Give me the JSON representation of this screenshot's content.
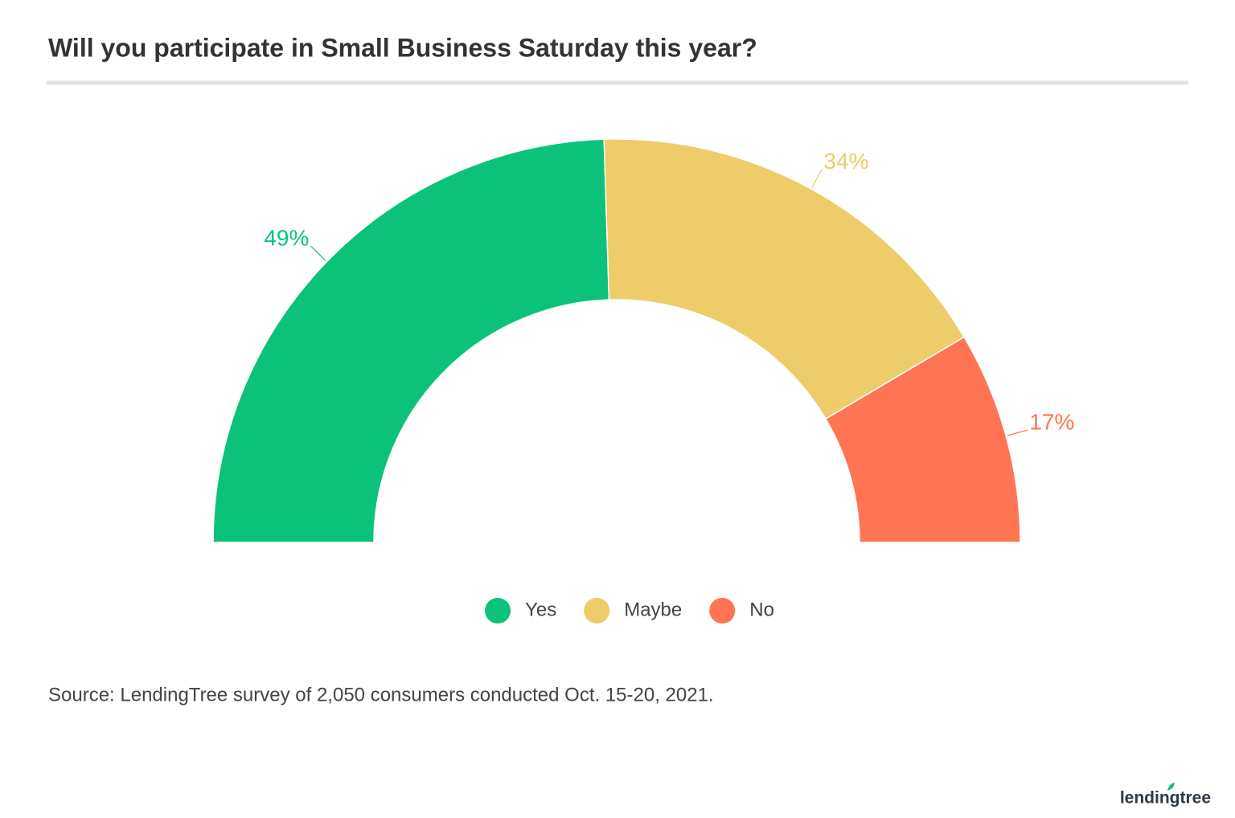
{
  "chart_data": {
    "type": "pie",
    "half_donut": true,
    "title": "Will you participate in Small Business Saturday this year?",
    "categories": [
      "Yes",
      "Maybe",
      "No"
    ],
    "values": [
      49,
      34,
      17
    ],
    "value_labels": [
      "49%",
      "34%",
      "17%"
    ],
    "colors": [
      "#0cc27a",
      "#eecc6a",
      "#ff7452"
    ],
    "legend": "bottom",
    "source": "Source: LendingTree survey of 2,050 consumers conducted Oct. 15-20, 2021."
  },
  "logo": "lendingtree"
}
